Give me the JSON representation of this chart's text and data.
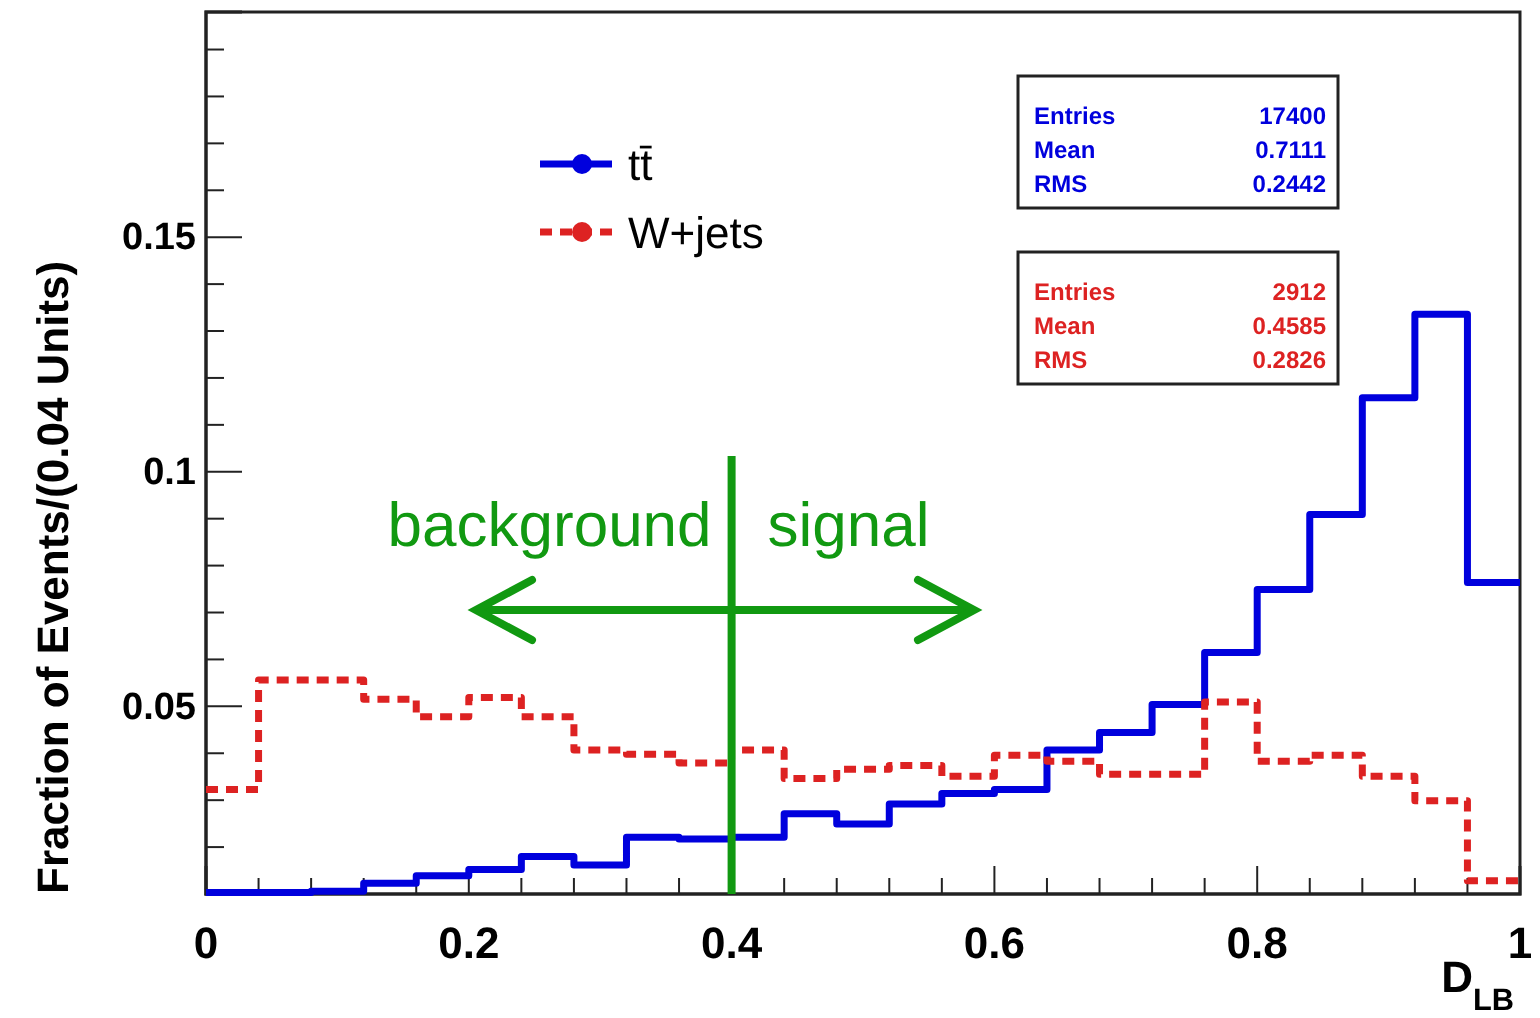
{
  "chart_data": {
    "type": "step",
    "xlabel": "D$_{LB}$",
    "ylabel": "Fraction of Events/(0.04 Units)",
    "x": [
      0,
      0.04,
      0.08,
      0.12,
      0.16,
      0.2,
      0.24,
      0.28,
      0.32,
      0.36,
      0.4,
      0.44,
      0.48,
      0.52,
      0.56,
      0.6,
      0.64,
      0.68,
      0.72,
      0.76,
      0.8,
      0.84,
      0.88,
      0.92,
      0.96,
      1
    ],
    "series": [
      {
        "name": "tt̄",
        "color": "#0000dd",
        "line_style": "solid",
        "values": [
          0.0103,
          0.0103,
          0.0106,
          0.0123,
          0.0139,
          0.0152,
          0.018,
          0.0162,
          0.0221,
          0.0217,
          0.0221,
          0.0271,
          0.0249,
          0.0292,
          0.0314,
          0.0323,
          0.0407,
          0.0444,
          0.0504,
          0.0615,
          0.0749,
          0.0909,
          0.1158,
          0.1336,
          0.0764,
          0.0764
        ]
      },
      {
        "name": "W+jets",
        "color": "#dd2222",
        "line_style": "dashed",
        "values": [
          0.0323,
          0.0556,
          0.0556,
          0.0515,
          0.0478,
          0.0519,
          0.0478,
          0.0407,
          0.0398,
          0.0379,
          0.0407,
          0.0346,
          0.0366,
          0.0374,
          0.0351,
          0.0396,
          0.0383,
          0.0355,
          0.0355,
          0.0509,
          0.0383,
          0.0396,
          0.0351,
          0.0299,
          0.0128,
          0.0128
        ]
      }
    ],
    "xlim": [
      0,
      1
    ],
    "ylim": [
      0.01,
      0.198
    ],
    "xticks": [
      0,
      {
        "value": 0.04,
        "label": null
      },
      {
        "value": 0.08,
        "label": null
      },
      {
        "value": 0.12,
        "label": null
      },
      {
        "value": 0.16,
        "label": null
      },
      0.2,
      {
        "value": 0.24,
        "label": null
      },
      {
        "value": 0.28,
        "label": null
      },
      {
        "value": 0.32,
        "label": null
      },
      {
        "value": 0.36,
        "label": null
      },
      0.4,
      {
        "value": 0.44,
        "label": null
      },
      {
        "value": 0.48,
        "label": null
      },
      {
        "value": 0.52,
        "label": null
      },
      {
        "value": 0.56,
        "label": null
      },
      0.6,
      {
        "value": 0.64,
        "label": null
      },
      {
        "value": 0.68,
        "label": null
      },
      {
        "value": 0.72,
        "label": null
      },
      {
        "value": 0.76,
        "label": null
      },
      0.8,
      {
        "value": 0.84,
        "label": null
      },
      {
        "value": 0.88,
        "label": null
      },
      {
        "value": 0.92,
        "label": null
      },
      {
        "value": 0.96,
        "label": null
      },
      1
    ],
    "yticks": [
      {
        "value": 0.02,
        "label": null
      },
      {
        "value": 0.03,
        "label": null
      },
      {
        "value": 0.04,
        "label": null
      },
      0.05,
      {
        "value": 0.06,
        "label": null
      },
      {
        "value": 0.07,
        "label": null
      },
      {
        "value": 0.08,
        "label": null
      },
      {
        "value": 0.09,
        "label": null
      },
      0.1,
      {
        "value": 0.11,
        "label": null
      },
      {
        "value": 0.12,
        "label": null
      },
      {
        "value": 0.13,
        "label": null
      },
      {
        "value": 0.14,
        "label": null
      },
      0.15,
      {
        "value": 0.16,
        "label": null
      },
      {
        "value": 0.17,
        "label": null
      },
      {
        "value": 0.18,
        "label": null
      },
      {
        "value": 0.19,
        "label": null
      }
    ],
    "legend": "top left",
    "ref_lines": [
      {
        "axis": "x",
        "value": 0.4,
        "color": "#119911"
      }
    ],
    "annotations": [
      "background",
      "signal",
      "Entries",
      "17400",
      "Mean",
      "0.7111",
      "RMS",
      "0.2442",
      "Entries",
      "2912",
      "Mean",
      "0.4585",
      "RMS",
      "0.2826"
    ]
  }
}
